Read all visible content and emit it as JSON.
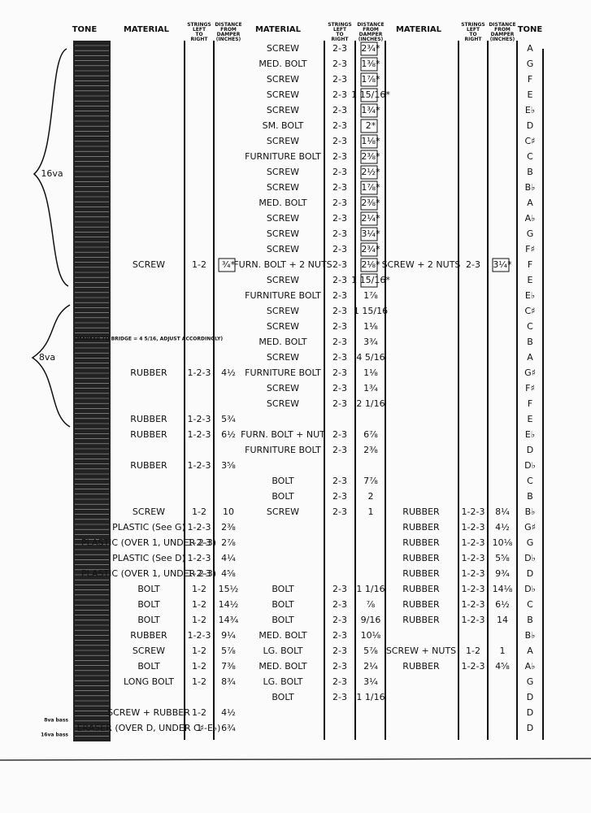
{
  "header": {
    "tone_left": "TONE",
    "material_1": "MATERIAL",
    "strings_1": "STRINGS LEFT TO RIGHT",
    "distance_1": "DISTANCE FROM DAMPER (INCHES)",
    "material_2": "MATERIAL",
    "strings_2": "STRINGS LEFT TO RIGHT",
    "distance_2": "DISTANCE FROM DAMPER (INCHES)",
    "material_3": "MATERIAL",
    "strings_3": "STRINGS LEFT TO RIGHT",
    "distance_3": "DISTANCE FROM DAMPER (INCHES)",
    "tone_right": "TONE"
  },
  "octave_marks": [
    "16va",
    "8va"
  ],
  "staff_labels": [
    "8va bass",
    "16va bass"
  ],
  "rows": [
    {
      "tone": "A",
      "middle": {
        "material": "SCREW",
        "strings": "2-3",
        "distance": "2¾*"
      }
    },
    {
      "tone": "G",
      "middle": {
        "material": "MED. BOLT",
        "strings": "2-3",
        "distance": "1⅜*"
      }
    },
    {
      "tone": "F",
      "middle": {
        "material": "SCREW",
        "strings": "2-3",
        "distance": "1⅞*"
      }
    },
    {
      "tone": "E",
      "middle": {
        "material": "SCREW",
        "strings": "2-3",
        "distance": "1 15/16*"
      }
    },
    {
      "tone": "E♭",
      "middle": {
        "material": "SCREW",
        "strings": "2-3",
        "distance": "1¾*"
      }
    },
    {
      "tone": "D",
      "middle": {
        "material": "SM. BOLT",
        "strings": "2-3",
        "distance": "2*"
      }
    },
    {
      "tone": "C♯",
      "middle": {
        "material": "SCREW",
        "strings": "2-3",
        "distance": "1⅛*"
      }
    },
    {
      "tone": "C",
      "middle": {
        "material": "FURNITURE BOLT",
        "strings": "2-3",
        "distance": "2⅜*"
      }
    },
    {
      "tone": "B",
      "middle": {
        "material": "SCREW",
        "strings": "2-3",
        "distance": "2½*"
      }
    },
    {
      "tone": "B♭",
      "middle": {
        "material": "SCREW",
        "strings": "2-3",
        "distance": "1⅞*"
      }
    },
    {
      "tone": "A",
      "middle": {
        "material": "MED. BOLT",
        "strings": "2-3",
        "distance": "2⅜*"
      }
    },
    {
      "tone": "A♭",
      "middle": {
        "material": "SCREW",
        "strings": "2-3",
        "distance": "2¼*"
      }
    },
    {
      "tone": "G",
      "middle": {
        "material": "SCREW",
        "strings": "2-3",
        "distance": "3¼*"
      }
    },
    {
      "tone": "F♯",
      "middle": {
        "material": "SCREW",
        "strings": "2-3",
        "distance": "2¾*"
      }
    },
    {
      "tone": "F",
      "left": {
        "material": "SCREW",
        "strings": "1-2",
        "distance": "¾*"
      },
      "middle": {
        "material": "FURN. BOLT + 2 NUTS",
        "strings": "2-3",
        "distance": "2⅛*"
      },
      "right": {
        "material": "SCREW + 2 NUTS",
        "strings": "2-3",
        "distance": "3¼*"
      }
    },
    {
      "tone": "E",
      "middle": {
        "material": "SCREW",
        "strings": "2-3",
        "distance": "1 15/16*"
      }
    },
    {
      "tone": "E♭",
      "middle": {
        "material": "FURNITURE BOLT",
        "strings": "2-3",
        "distance": "1⅞"
      }
    },
    {
      "tone": "C♯",
      "middle": {
        "material": "SCREW",
        "strings": "2-3",
        "distance": "1 15/16"
      }
    },
    {
      "tone": "C",
      "middle": {
        "material": "SCREW",
        "strings": "2-3",
        "distance": "1⅛"
      }
    },
    {
      "tone": "B",
      "note": "(MARKER TO BRIDGE = 4 5/16, ADJUST ACCORDINGLY)",
      "middle": {
        "material": "MED. BOLT",
        "strings": "2-3",
        "distance": "3¾"
      }
    },
    {
      "tone": "A",
      "middle": {
        "material": "SCREW",
        "strings": "2-3",
        "distance": "4 5/16"
      }
    },
    {
      "tone": "G♯",
      "left": {
        "material": "RUBBER",
        "strings": "1-2-3",
        "distance": "4½"
      },
      "middle": {
        "material": "FURNITURE BOLT",
        "strings": "2-3",
        "distance": "1⅛"
      }
    },
    {
      "tone": "F♯",
      "middle": {
        "material": "SCREW",
        "strings": "2-3",
        "distance": "1¾"
      }
    },
    {
      "tone": "F",
      "middle": {
        "material": "SCREW",
        "strings": "2-3",
        "distance": "2 1/16"
      }
    },
    {
      "tone": "E",
      "left": {
        "material": "RUBBER",
        "strings": "1-2-3",
        "distance": "5¾"
      }
    },
    {
      "tone": "E♭",
      "left": {
        "material": "RUBBER",
        "strings": "1-2-3",
        "distance": "6½"
      },
      "middle": {
        "material": "FURN. BOLT + NUT",
        "strings": "2-3",
        "distance": "6⅞"
      }
    },
    {
      "tone": "D",
      "middle": {
        "material": "FURNITURE BOLT",
        "strings": "2-3",
        "distance": "2⅜"
      }
    },
    {
      "tone": "D♭",
      "left": {
        "material": "RUBBER",
        "strings": "1-2-3",
        "distance": "3⅝"
      }
    },
    {
      "tone": "C",
      "middle": {
        "material": "BOLT",
        "strings": "2-3",
        "distance": "7⅞"
      }
    },
    {
      "tone": "B",
      "middle": {
        "material": "BOLT",
        "strings": "2-3",
        "distance": "2"
      }
    },
    {
      "tone": "B♭",
      "left": {
        "material": "SCREW",
        "strings": "1-2",
        "distance": "10"
      },
      "middle": {
        "material": "SCREW",
        "strings": "2-3",
        "distance": "1"
      },
      "right": {
        "material": "RUBBER",
        "strings": "1-2-3",
        "distance": "8¼"
      }
    },
    {
      "tone": "G♯",
      "left": {
        "material": "PLASTIC (See G)",
        "strings": "1-2-3",
        "distance": "2⅜"
      },
      "right": {
        "material": "RUBBER",
        "strings": "1-2-3",
        "distance": "4½"
      }
    },
    {
      "tone": "G",
      "left": {
        "material": "PLASTIC (OVER 1, UNDER 2-3)",
        "strings": "1-2-3",
        "distance": "2⅞"
      },
      "right": {
        "material": "RUBBER",
        "strings": "1-2-3",
        "distance": "10⅛"
      }
    },
    {
      "tone": "D♭",
      "left": {
        "material": "PLASTIC (See D)",
        "strings": "1-2-3",
        "distance": "4¼"
      },
      "right": {
        "material": "RUBBER",
        "strings": "1-2-3",
        "distance": "5⅝"
      }
    },
    {
      "tone": "D",
      "left": {
        "material": "PLASTIC (OVER 1, UNDER 2-3)",
        "strings": "1-2-3",
        "distance": "4⅝"
      },
      "right": {
        "material": "RUBBER",
        "strings": "1-2-3",
        "distance": "9¾"
      }
    },
    {
      "tone": "D♭",
      "left": {
        "material": "BOLT",
        "strings": "1-2",
        "distance": "15½"
      },
      "middle": {
        "material": "BOLT",
        "strings": "2-3",
        "distance": "1 1/16"
      },
      "right": {
        "material": "RUBBER",
        "strings": "1-2-3",
        "distance": "14⅛"
      }
    },
    {
      "tone": "C",
      "left": {
        "material": "BOLT",
        "strings": "1-2",
        "distance": "14½"
      },
      "middle": {
        "material": "BOLT",
        "strings": "2-3",
        "distance": "⅞"
      },
      "right": {
        "material": "RUBBER",
        "strings": "1-2-3",
        "distance": "6½"
      }
    },
    {
      "tone": "B",
      "left": {
        "material": "BOLT",
        "strings": "1-2",
        "distance": "14¾"
      },
      "middle": {
        "material": "BOLT",
        "strings": "2-3",
        "distance": "9/16"
      },
      "right": {
        "material": "RUBBER",
        "strings": "1-2-3",
        "distance": "14"
      }
    },
    {
      "tone": "B♭",
      "left": {
        "material": "RUBBER",
        "strings": "1-2-3",
        "distance": "9¼"
      },
      "middle": {
        "material": "MED. BOLT",
        "strings": "2-3",
        "distance": "10⅛"
      }
    },
    {
      "tone": "A",
      "left": {
        "material": "SCREW",
        "strings": "1-2",
        "distance": "5⅞"
      },
      "middle": {
        "material": "LG. BOLT",
        "strings": "2-3",
        "distance": "5⅞"
      },
      "right": {
        "material": "SCREW + NUTS",
        "strings": "1-2",
        "distance": "1"
      }
    },
    {
      "tone": "A♭",
      "left": {
        "material": "BOLT",
        "strings": "1-2",
        "distance": "7⅜"
      },
      "middle": {
        "material": "MED. BOLT",
        "strings": "2-3",
        "distance": "2¼"
      },
      "right": {
        "material": "RUBBER",
        "strings": "1-2-3",
        "distance": "4⅝"
      }
    },
    {
      "tone": "G",
      "left": {
        "material": "LONG BOLT",
        "strings": "1-2",
        "distance": "8¾"
      },
      "middle": {
        "material": "LG. BOLT",
        "strings": "2-3",
        "distance": "3¼"
      }
    },
    {
      "tone": "D",
      "middle": {
        "material": "BOLT",
        "strings": "2-3",
        "distance": "1 1/16"
      }
    },
    {
      "tone": "D",
      "left": {
        "material": "SCREW + RUBBER",
        "strings": "1-2",
        "distance": "4½"
      }
    },
    {
      "tone": "D",
      "left": {
        "material": "ERASER (OVER D, UNDER C♯-E♭)",
        "strings": "1",
        "distance": "6¾"
      }
    }
  ]
}
